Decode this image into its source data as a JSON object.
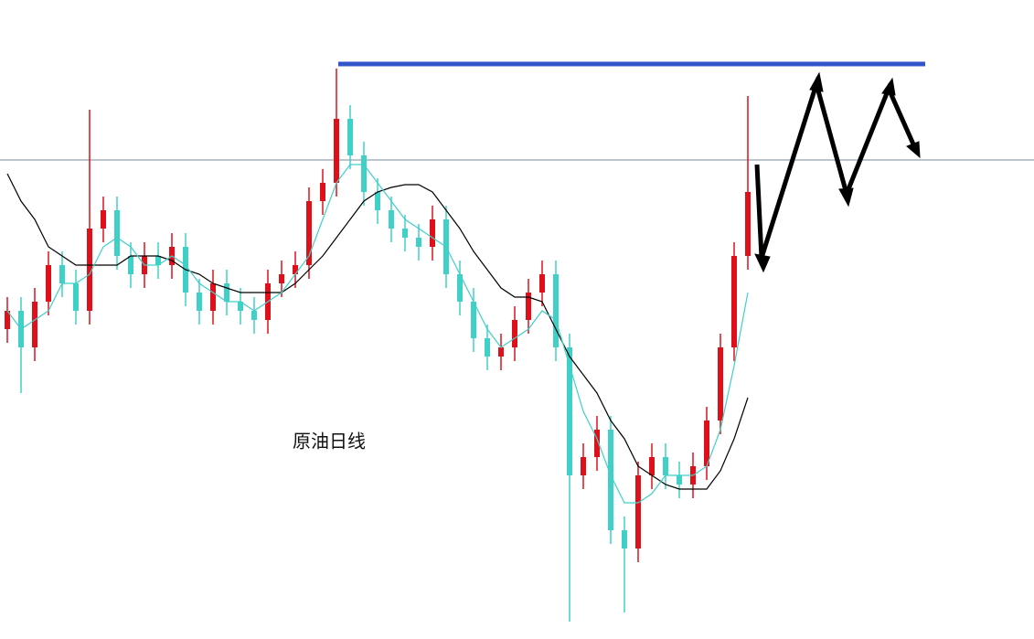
{
  "chart_data": {
    "type": "candlestick",
    "title": "原油日线",
    "ylim": [
      30,
      100
    ],
    "open": [
      64,
      66,
      62,
      67,
      71,
      69,
      66,
      75,
      77,
      72,
      70,
      72,
      71,
      73,
      68,
      66,
      69,
      67,
      66,
      65,
      69,
      70,
      71,
      78,
      80,
      87,
      83,
      79,
      77,
      75,
      74,
      73,
      76,
      70,
      67,
      63,
      61,
      62,
      65,
      68,
      70,
      62,
      48,
      50,
      53,
      42,
      40,
      48,
      50,
      48,
      47,
      49,
      54,
      62,
      72
    ],
    "high": [
      67.5,
      67.5,
      68.5,
      72.5,
      72.5,
      70.5,
      88,
      78.5,
      78.5,
      73.5,
      73.5,
      73.5,
      74.5,
      74.5,
      69.5,
      70.5,
      70.5,
      68.5,
      67.5,
      70.5,
      71.5,
      72.5,
      79.5,
      81.5,
      92.5,
      88.5,
      84.5,
      80.5,
      78.5,
      76.5,
      75.5,
      77.5,
      77.5,
      71.5,
      68.5,
      64.5,
      63.5,
      66.5,
      69.5,
      71.5,
      71.5,
      63.5,
      51.5,
      54.5,
      54.5,
      43.5,
      49.5,
      51.5,
      51.5,
      49.5,
      50.5,
      55.5,
      63.5,
      73.5,
      89.5
    ],
    "low": [
      62.5,
      57,
      60.5,
      65.5,
      67.5,
      64.5,
      64.5,
      73.5,
      70.5,
      68.5,
      68.5,
      69.5,
      69.5,
      66.5,
      64.5,
      64.5,
      65.5,
      64.5,
      63.5,
      63.5,
      67.5,
      68.5,
      69.5,
      76.5,
      78.5,
      81.5,
      77.5,
      75.5,
      73.5,
      72.5,
      71.5,
      71.5,
      68.5,
      65.5,
      61.5,
      59.5,
      59.5,
      60.5,
      63.5,
      66.5,
      60.5,
      32,
      46.5,
      48.5,
      40.5,
      33,
      38.5,
      46.5,
      46.5,
      45.5,
      45.5,
      47.5,
      52.5,
      60.5,
      70.5
    ],
    "close": [
      66,
      62,
      67,
      71,
      69,
      66,
      75,
      77,
      72,
      70,
      72,
      71,
      73,
      68,
      66,
      69,
      67,
      66,
      65,
      69,
      70,
      71,
      78,
      80,
      87,
      83,
      79,
      77,
      75,
      74,
      73,
      76,
      70,
      67,
      63,
      61,
      62,
      65,
      68,
      70,
      62,
      48,
      50,
      53,
      42,
      40,
      48,
      50,
      48,
      47,
      49,
      54,
      62,
      72,
      79
    ],
    "up_color": "#e0101a",
    "down_color": "#3fd0c8",
    "moving_averages": [
      {
        "color": "#000000",
        "values": [
          81,
          78,
          76,
          73,
          72,
          71,
          71,
          71,
          71,
          72,
          72,
          72,
          71.5,
          70.5,
          70,
          69,
          68.5,
          68,
          68,
          68,
          68,
          69,
          70.5,
          72,
          74,
          76,
          78,
          79,
          79.5,
          79.8,
          79.8,
          79,
          77,
          75,
          72.5,
          70.5,
          68.5,
          67.5,
          67.5,
          67,
          64,
          61,
          59,
          57,
          54,
          52,
          49,
          48,
          47,
          46.5,
          46.5,
          46.5,
          48.5,
          52,
          56.5
        ]
      },
      {
        "color": "#3fd0c8",
        "values": [
          66,
          64,
          65,
          66,
          69,
          69,
          70,
          73,
          74,
          73,
          71,
          71,
          72,
          71,
          69,
          68,
          67,
          67,
          66,
          67,
          68,
          70,
          72,
          76,
          80,
          82,
          82,
          80,
          78,
          76,
          75,
          74,
          73,
          70,
          67,
          64,
          62,
          63,
          64,
          66,
          65,
          60,
          55,
          52,
          48,
          45,
          45,
          46,
          48,
          48,
          48,
          49,
          53,
          60,
          68
        ]
      }
    ],
    "reference_line": {
      "value": 82.5,
      "color": "#7a8a99"
    },
    "resistance_line": {
      "value": 93,
      "color": "#3355cc"
    }
  }
}
